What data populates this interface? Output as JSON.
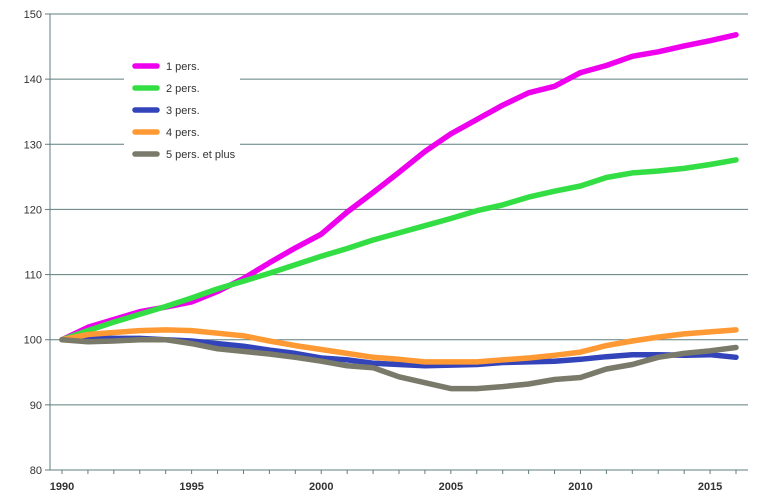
{
  "chart_data": {
    "type": "line",
    "title": "",
    "xlabel": "",
    "ylabel": "",
    "x": [
      1990,
      1991,
      1992,
      1993,
      1994,
      1995,
      1996,
      1997,
      1998,
      1999,
      2000,
      2001,
      2002,
      2003,
      2004,
      2005,
      2006,
      2007,
      2008,
      2009,
      2010,
      2011,
      2012,
      2013,
      2014,
      2015,
      2016
    ],
    "xlim": [
      1990,
      2016
    ],
    "ylim": [
      80,
      150
    ],
    "x_ticks": [
      "1990",
      "1995",
      "2000",
      "2005",
      "2010",
      "2015"
    ],
    "y_ticks": [
      "80",
      "90",
      "100",
      "110",
      "120",
      "130",
      "140",
      "150"
    ],
    "grid": "horizontal",
    "legend_position": "top-left",
    "series": [
      {
        "name": "1 pers.",
        "color": "#ee00ee",
        "values": [
          100,
          101.9,
          103.1,
          104.3,
          105,
          105.8,
          107.4,
          109.4,
          111.8,
          114.1,
          116.2,
          119.6,
          122.6,
          125.7,
          128.9,
          131.6,
          133.8,
          136.0,
          137.9,
          138.9,
          141.0,
          142.1,
          143.5,
          144.2,
          145.1,
          145.9,
          146.8
        ]
      },
      {
        "name": "2 pers.",
        "color": "#33dd44",
        "values": [
          100,
          101.4,
          102.7,
          103.9,
          105.1,
          106.4,
          107.8,
          109.0,
          110.2,
          111.5,
          112.8,
          114.0,
          115.3,
          116.4,
          117.5,
          118.6,
          119.8,
          120.7,
          121.9,
          122.8,
          123.6,
          124.9,
          125.6,
          125.9,
          126.3,
          126.9,
          127.6
        ]
      },
      {
        "name": "3 pers.",
        "color": "#3344bb",
        "values": [
          100,
          100.2,
          100.2,
          100.2,
          100.0,
          99.8,
          99.4,
          99.0,
          98.4,
          97.9,
          97.2,
          96.9,
          96.4,
          96.2,
          96.0,
          96.1,
          96.2,
          96.5,
          96.6,
          96.7,
          97.0,
          97.4,
          97.7,
          97.7,
          97.6,
          97.7,
          97.3
        ]
      },
      {
        "name": "4 pers.",
        "color": "#ff9933",
        "values": [
          100,
          100.8,
          101.1,
          101.4,
          101.5,
          101.4,
          101.0,
          100.6,
          99.8,
          99.1,
          98.5,
          97.9,
          97.3,
          97.0,
          96.6,
          96.6,
          96.6,
          96.9,
          97.2,
          97.6,
          98.1,
          99.1,
          99.8,
          100.4,
          100.9,
          101.2,
          101.5
        ]
      },
      {
        "name": "5 pers. et plus",
        "color": "#7a7a6a",
        "values": [
          100,
          99.7,
          99.8,
          100.0,
          100.0,
          99.4,
          98.6,
          98.2,
          97.8,
          97.3,
          96.7,
          96.0,
          95.7,
          94.3,
          93.4,
          92.5,
          92.5,
          92.8,
          93.2,
          93.9,
          94.2,
          95.5,
          96.2,
          97.3,
          97.9,
          98.3,
          98.8
        ]
      }
    ]
  }
}
